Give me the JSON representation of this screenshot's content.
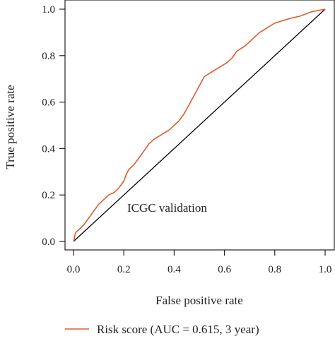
{
  "chart_data": {
    "type": "line",
    "xlabel": "False positive rate",
    "ylabel": "True positive rate",
    "xlim": [
      0,
      1
    ],
    "ylim": [
      0,
      1
    ],
    "x_ticks": [
      "0.0",
      "0.2",
      "0.4",
      "0.6",
      "0.8",
      "1.0"
    ],
    "y_ticks": [
      "0.0",
      "0.2",
      "0.4",
      "0.6",
      "0.8",
      "1.0"
    ],
    "annotation": "ICGC validation",
    "grid": false,
    "legend_position": "bottom",
    "series": [
      {
        "name": "Risk score (AUC = 0.615, 3 year)",
        "color": "#e05a2b",
        "x": [
          0.0,
          0.003,
          0.006,
          0.01,
          0.02,
          0.04,
          0.06,
          0.08,
          0.1,
          0.12,
          0.14,
          0.16,
          0.18,
          0.2,
          0.21,
          0.22,
          0.24,
          0.26,
          0.28,
          0.3,
          0.32,
          0.35,
          0.38,
          0.4,
          0.42,
          0.44,
          0.46,
          0.48,
          0.5,
          0.52,
          0.55,
          0.58,
          0.61,
          0.63,
          0.65,
          0.68,
          0.71,
          0.74,
          0.77,
          0.8,
          0.83,
          0.86,
          0.9,
          0.95,
          1.0
        ],
        "y": [
          0.0,
          0.01,
          0.03,
          0.04,
          0.05,
          0.07,
          0.1,
          0.13,
          0.16,
          0.18,
          0.2,
          0.21,
          0.23,
          0.26,
          0.29,
          0.31,
          0.33,
          0.36,
          0.39,
          0.42,
          0.44,
          0.46,
          0.48,
          0.5,
          0.52,
          0.55,
          0.59,
          0.63,
          0.67,
          0.71,
          0.73,
          0.75,
          0.77,
          0.79,
          0.82,
          0.84,
          0.87,
          0.9,
          0.92,
          0.94,
          0.95,
          0.96,
          0.97,
          0.99,
          1.0
        ]
      },
      {
        "name": "",
        "color": "#000000",
        "x": [
          0,
          1
        ],
        "y": [
          0,
          1
        ]
      }
    ]
  }
}
